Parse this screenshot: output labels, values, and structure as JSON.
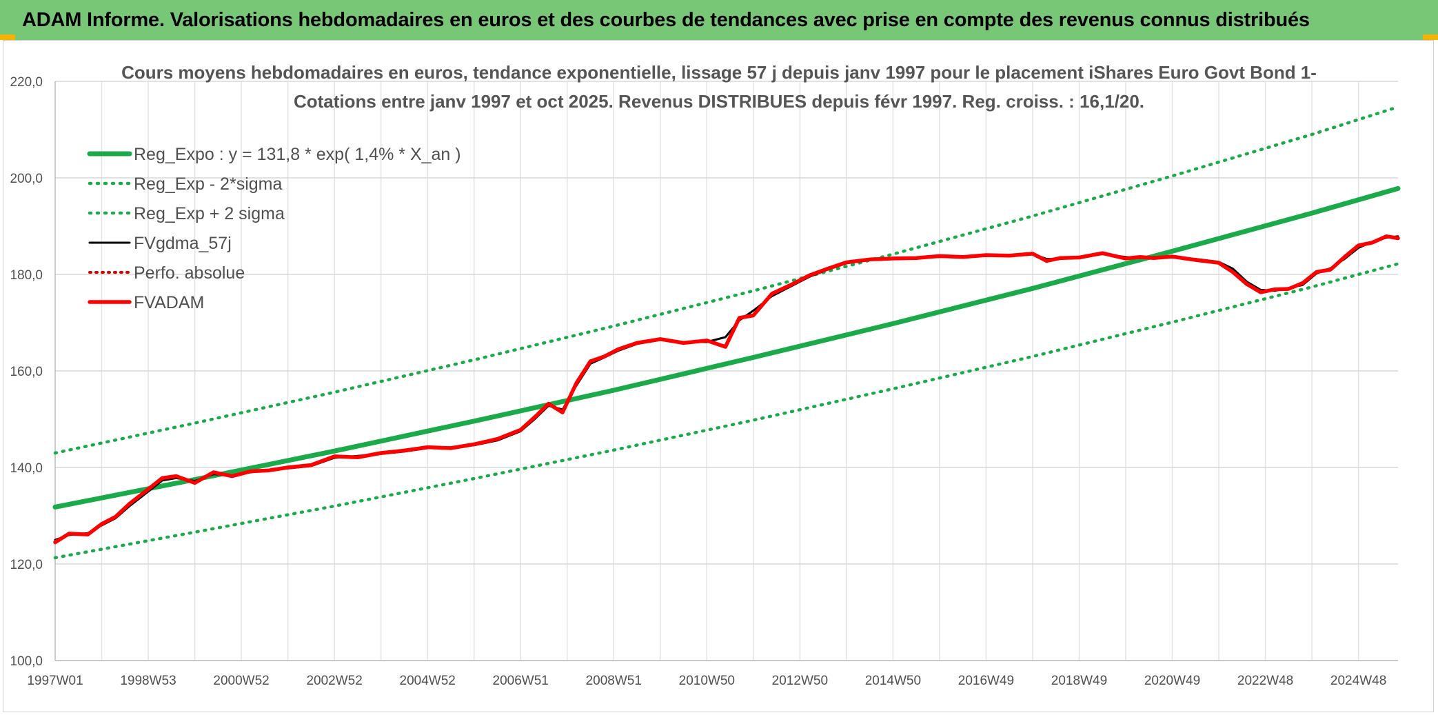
{
  "header": {
    "title": "ADAM Informe. Valorisations hebdomadaires en euros et des courbes de tendances avec prise en compte des revenus connus distribués"
  },
  "chart_data": {
    "type": "line",
    "title_line1": "Cours moyens hebdomadaires en euros, tendance exponentielle, lissage 57 j depuis janv 1997 pour le placement iShares Euro Govt Bond 1-",
    "title_line2": "Cotations entre janv 1997 et oct 2025. Revenus DISTRIBUES depuis févr 1997. Reg. croiss. : 16,1/20.",
    "ylim": [
      100,
      220
    ],
    "y_ticks": [
      "100,0",
      "120,0",
      "140,0",
      "160,0",
      "180,0",
      "200,0",
      "220,0"
    ],
    "y_tick_values": [
      100,
      120,
      140,
      160,
      180,
      200,
      220
    ],
    "xlim": [
      1997.0,
      2025.85
    ],
    "x_tick_labels": [
      "1997W01",
      "1998W53",
      "2000W52",
      "2002W52",
      "2004W52",
      "2006W51",
      "2008W51",
      "2010W50",
      "2012W50",
      "2014W50",
      "2016W49",
      "2018W49",
      "2020W49",
      "2022W48",
      "2024W48"
    ],
    "x_tick_positions": [
      1997.0,
      1999.0,
      2001.0,
      2003.0,
      2005.0,
      2007.0,
      2009.0,
      2011.0,
      2013.0,
      2015.0,
      2017.0,
      2019.0,
      2021.0,
      2023.0,
      2025.0
    ],
    "grid": true,
    "legend_position": "top-left",
    "colors": {
      "reg_expo": "#1aaa4a",
      "sigma": "#1aaa4a",
      "fvgdma": "#000000",
      "perfo": "#e00000",
      "fvadam": "#ff0000"
    },
    "series": [
      {
        "name": "Reg_Expo : y = 131,8 * exp( 1,4% *  X_an )",
        "style": "solid-green-thick",
        "x": [
          1997.0,
          2000.0,
          2003.0,
          2006.0,
          2009.0,
          2012.0,
          2015.0,
          2018.0,
          2021.0,
          2024.0,
          2025.85
        ],
        "values": [
          131.8,
          137.5,
          143.4,
          149.6,
          156.0,
          162.8,
          169.8,
          177.1,
          184.8,
          192.7,
          197.8
        ]
      },
      {
        "name": "Reg_Exp - 2*sigma",
        "style": "dotted-green",
        "x": [
          1997.0,
          2000.0,
          2003.0,
          2006.0,
          2009.0,
          2012.0,
          2015.0,
          2018.0,
          2021.0,
          2024.0,
          2025.85
        ],
        "values": [
          121.3,
          126.6,
          132.0,
          137.7,
          143.6,
          149.8,
          156.3,
          163.0,
          170.1,
          177.4,
          182.2
        ]
      },
      {
        "name": "Reg_Exp + 2 sigma",
        "style": "dotted-green",
        "x": [
          1997.0,
          2000.0,
          2003.0,
          2006.0,
          2009.0,
          2012.0,
          2015.0,
          2018.0,
          2021.0,
          2024.0,
          2025.85
        ],
        "values": [
          143.0,
          149.2,
          155.6,
          162.3,
          169.3,
          176.6,
          184.2,
          192.1,
          200.4,
          209.0,
          214.7
        ]
      },
      {
        "name": "FVgdma_57j",
        "style": "solid-black",
        "x": [
          1997.0,
          1997.3,
          1997.7,
          1998.0,
          1998.3,
          1998.6,
          1999.0,
          1999.3,
          1999.6,
          2000.0,
          2000.4,
          2000.8,
          2001.2,
          2001.6,
          2002.0,
          2002.5,
          2003.0,
          2003.5,
          2004.0,
          2004.5,
          2005.0,
          2005.5,
          2006.0,
          2006.5,
          2007.0,
          2007.3,
          2007.6,
          2007.9,
          2008.2,
          2008.5,
          2008.8,
          2009.1,
          2009.5,
          2010.0,
          2010.5,
          2011.0,
          2011.4,
          2011.7,
          2012.0,
          2012.4,
          2012.8,
          2013.2,
          2013.6,
          2014.0,
          2014.5,
          2015.0,
          2015.5,
          2016.0,
          2016.5,
          2017.0,
          2017.5,
          2018.0,
          2018.3,
          2018.6,
          2019.0,
          2019.5,
          2020.0,
          2020.3,
          2020.6,
          2021.0,
          2021.5,
          2022.0,
          2022.3,
          2022.6,
          2022.9,
          2023.2,
          2023.5,
          2023.8,
          2024.1,
          2024.4,
          2024.7,
          2025.0,
          2025.3,
          2025.6,
          2025.85
        ],
        "values": [
          125.0,
          126.0,
          126.4,
          128.0,
          129.5,
          132.0,
          135.0,
          137.3,
          137.8,
          137.2,
          138.6,
          138.4,
          139.0,
          139.5,
          139.8,
          140.3,
          142.0,
          142.4,
          142.8,
          143.3,
          144.0,
          144.2,
          144.6,
          145.6,
          147.5,
          150.0,
          152.8,
          152.0,
          157.0,
          161.5,
          162.8,
          164.2,
          165.6,
          166.4,
          166.0,
          166.0,
          167.0,
          170.5,
          172.5,
          175.5,
          177.5,
          179.5,
          181.0,
          182.3,
          183.0,
          183.2,
          183.5,
          183.6,
          183.7,
          183.8,
          184.0,
          184.2,
          183.2,
          183.2,
          183.6,
          184.2,
          183.6,
          183.4,
          183.6,
          183.5,
          183.2,
          182.6,
          181.2,
          178.5,
          176.8,
          176.6,
          177.2,
          177.8,
          180.2,
          181.3,
          183.2,
          185.5,
          186.8,
          187.6,
          187.9
        ]
      },
      {
        "name": "Perfo. absolue",
        "style": "dotted-red",
        "x": [],
        "values": []
      },
      {
        "name": "FVADAM",
        "style": "solid-red-thick",
        "x": [
          1997.0,
          1997.3,
          1997.7,
          1998.0,
          1998.3,
          1998.6,
          1999.0,
          1999.3,
          1999.6,
          2000.0,
          2000.4,
          2000.8,
          2001.2,
          2001.6,
          2002.0,
          2002.5,
          2003.0,
          2003.5,
          2004.0,
          2004.5,
          2005.0,
          2005.5,
          2006.0,
          2006.5,
          2007.0,
          2007.3,
          2007.6,
          2007.9,
          2008.2,
          2008.5,
          2008.8,
          2009.1,
          2009.5,
          2010.0,
          2010.5,
          2011.0,
          2011.4,
          2011.7,
          2012.0,
          2012.4,
          2012.8,
          2013.2,
          2013.6,
          2014.0,
          2014.5,
          2015.0,
          2015.5,
          2016.0,
          2016.5,
          2017.0,
          2017.5,
          2018.0,
          2018.3,
          2018.6,
          2019.0,
          2019.5,
          2020.0,
          2020.3,
          2020.6,
          2021.0,
          2021.5,
          2022.0,
          2022.3,
          2022.6,
          2022.9,
          2023.2,
          2023.5,
          2023.8,
          2024.1,
          2024.4,
          2024.7,
          2025.0,
          2025.3,
          2025.6,
          2025.85
        ],
        "values": [
          124.5,
          126.3,
          126.1,
          128.3,
          129.8,
          132.5,
          135.5,
          137.8,
          138.2,
          136.8,
          139.0,
          138.2,
          139.2,
          139.4,
          140.0,
          140.5,
          142.3,
          142.1,
          143.0,
          143.5,
          144.2,
          144.0,
          144.8,
          145.9,
          147.8,
          150.4,
          153.2,
          151.4,
          157.5,
          162.0,
          163.0,
          164.5,
          165.8,
          166.6,
          165.8,
          166.3,
          165.0,
          171.0,
          171.5,
          176.0,
          177.8,
          179.8,
          181.2,
          182.5,
          183.1,
          183.3,
          183.4,
          183.8,
          183.6,
          184.0,
          183.9,
          184.3,
          182.8,
          183.4,
          183.5,
          184.4,
          183.3,
          183.6,
          183.4,
          183.7,
          183.0,
          182.4,
          180.5,
          178.0,
          176.3,
          176.9,
          177.0,
          178.2,
          180.5,
          181.0,
          183.6,
          186.0,
          186.6,
          187.9,
          187.5
        ]
      }
    ]
  }
}
